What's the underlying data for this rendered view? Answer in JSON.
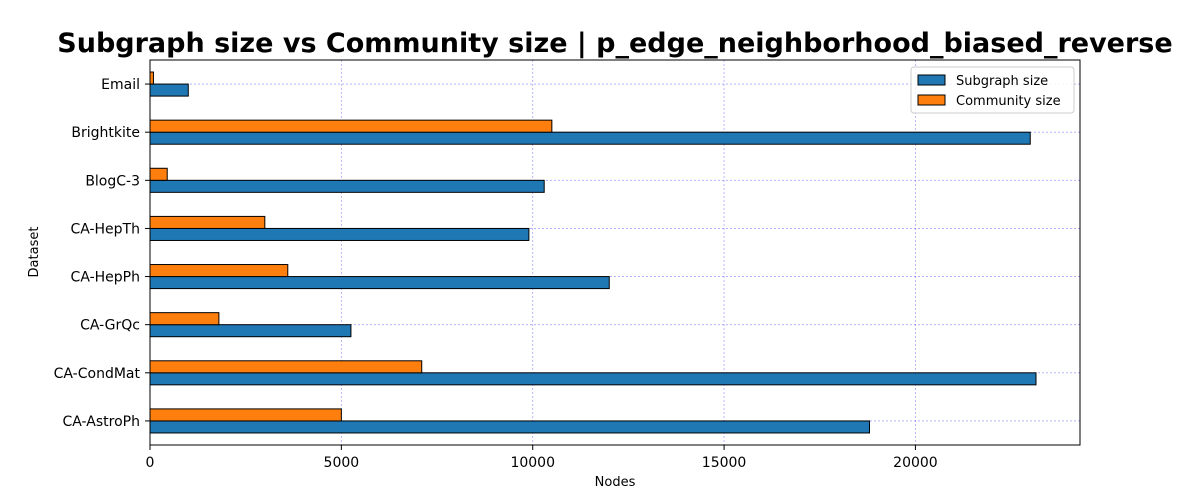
{
  "chart_data": {
    "type": "bar",
    "orientation": "horizontal",
    "title": "Subgraph size vs Community size | p_edge_neighborhood_biased_reverse",
    "xlabel": "Nodes",
    "ylabel": "Dataset",
    "xlim": [
      0,
      24300
    ],
    "xticks": [
      0,
      5000,
      10000,
      15000,
      20000
    ],
    "grid": true,
    "legend_position": "top-right",
    "categories": [
      "Email",
      "Brightkite",
      "BlogC-3",
      "CA-HepTh",
      "CA-HepPh",
      "CA-GrQc",
      "CA-CondMat",
      "CA-AstroPh"
    ],
    "series": [
      {
        "name": "Subgraph size",
        "color": "#1f77b4",
        "values": [
          1000,
          23000,
          10300,
          9900,
          12000,
          5250,
          23150,
          18800
        ]
      },
      {
        "name": "Community size",
        "color": "#ff7f0e",
        "values": [
          90,
          10500,
          450,
          3000,
          3600,
          1800,
          7100,
          5000
        ]
      }
    ]
  }
}
